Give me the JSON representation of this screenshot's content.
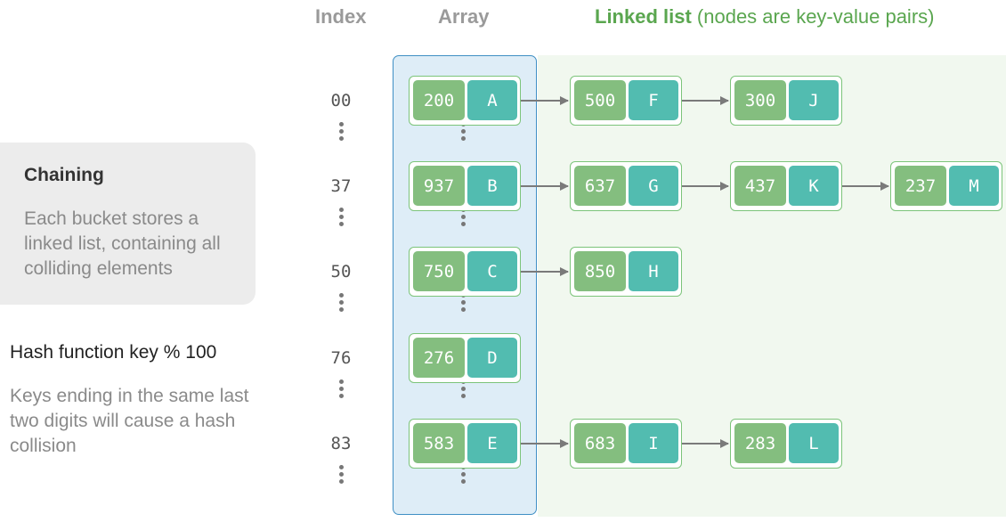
{
  "headers": {
    "index": "Index",
    "array": "Array",
    "linked_list": "Linked list",
    "linked_list_note": " (nodes are key-value pairs)"
  },
  "info": {
    "title": "Chaining",
    "description": "Each bucket stores a linked list, containing all colliding elements"
  },
  "hash": {
    "title": "Hash function key % 100",
    "description": "Keys ending in the same last two digits will cause a hash collision"
  },
  "buckets": [
    {
      "index": "00",
      "array_node": {
        "key": "200",
        "value": "A"
      },
      "chain": [
        {
          "key": "500",
          "value": "F"
        },
        {
          "key": "300",
          "value": "J"
        }
      ]
    },
    {
      "index": "37",
      "array_node": {
        "key": "937",
        "value": "B"
      },
      "chain": [
        {
          "key": "637",
          "value": "G"
        },
        {
          "key": "437",
          "value": "K"
        },
        {
          "key": "237",
          "value": "M"
        }
      ]
    },
    {
      "index": "50",
      "array_node": {
        "key": "750",
        "value": "C"
      },
      "chain": [
        {
          "key": "850",
          "value": "H"
        }
      ]
    },
    {
      "index": "76",
      "array_node": {
        "key": "276",
        "value": "D"
      },
      "chain": []
    },
    {
      "index": "83",
      "array_node": {
        "key": "583",
        "value": "E"
      },
      "chain": [
        {
          "key": "683",
          "value": "I"
        },
        {
          "key": "283",
          "value": "L"
        }
      ]
    }
  ],
  "colors": {
    "key_fill": "#84be7f",
    "value_fill": "#52bcb0",
    "array_panel": "#deedf7",
    "array_border": "#3f8fc4",
    "linked_panel": "#f1f8ef",
    "linked_header": "#5aa64f"
  }
}
